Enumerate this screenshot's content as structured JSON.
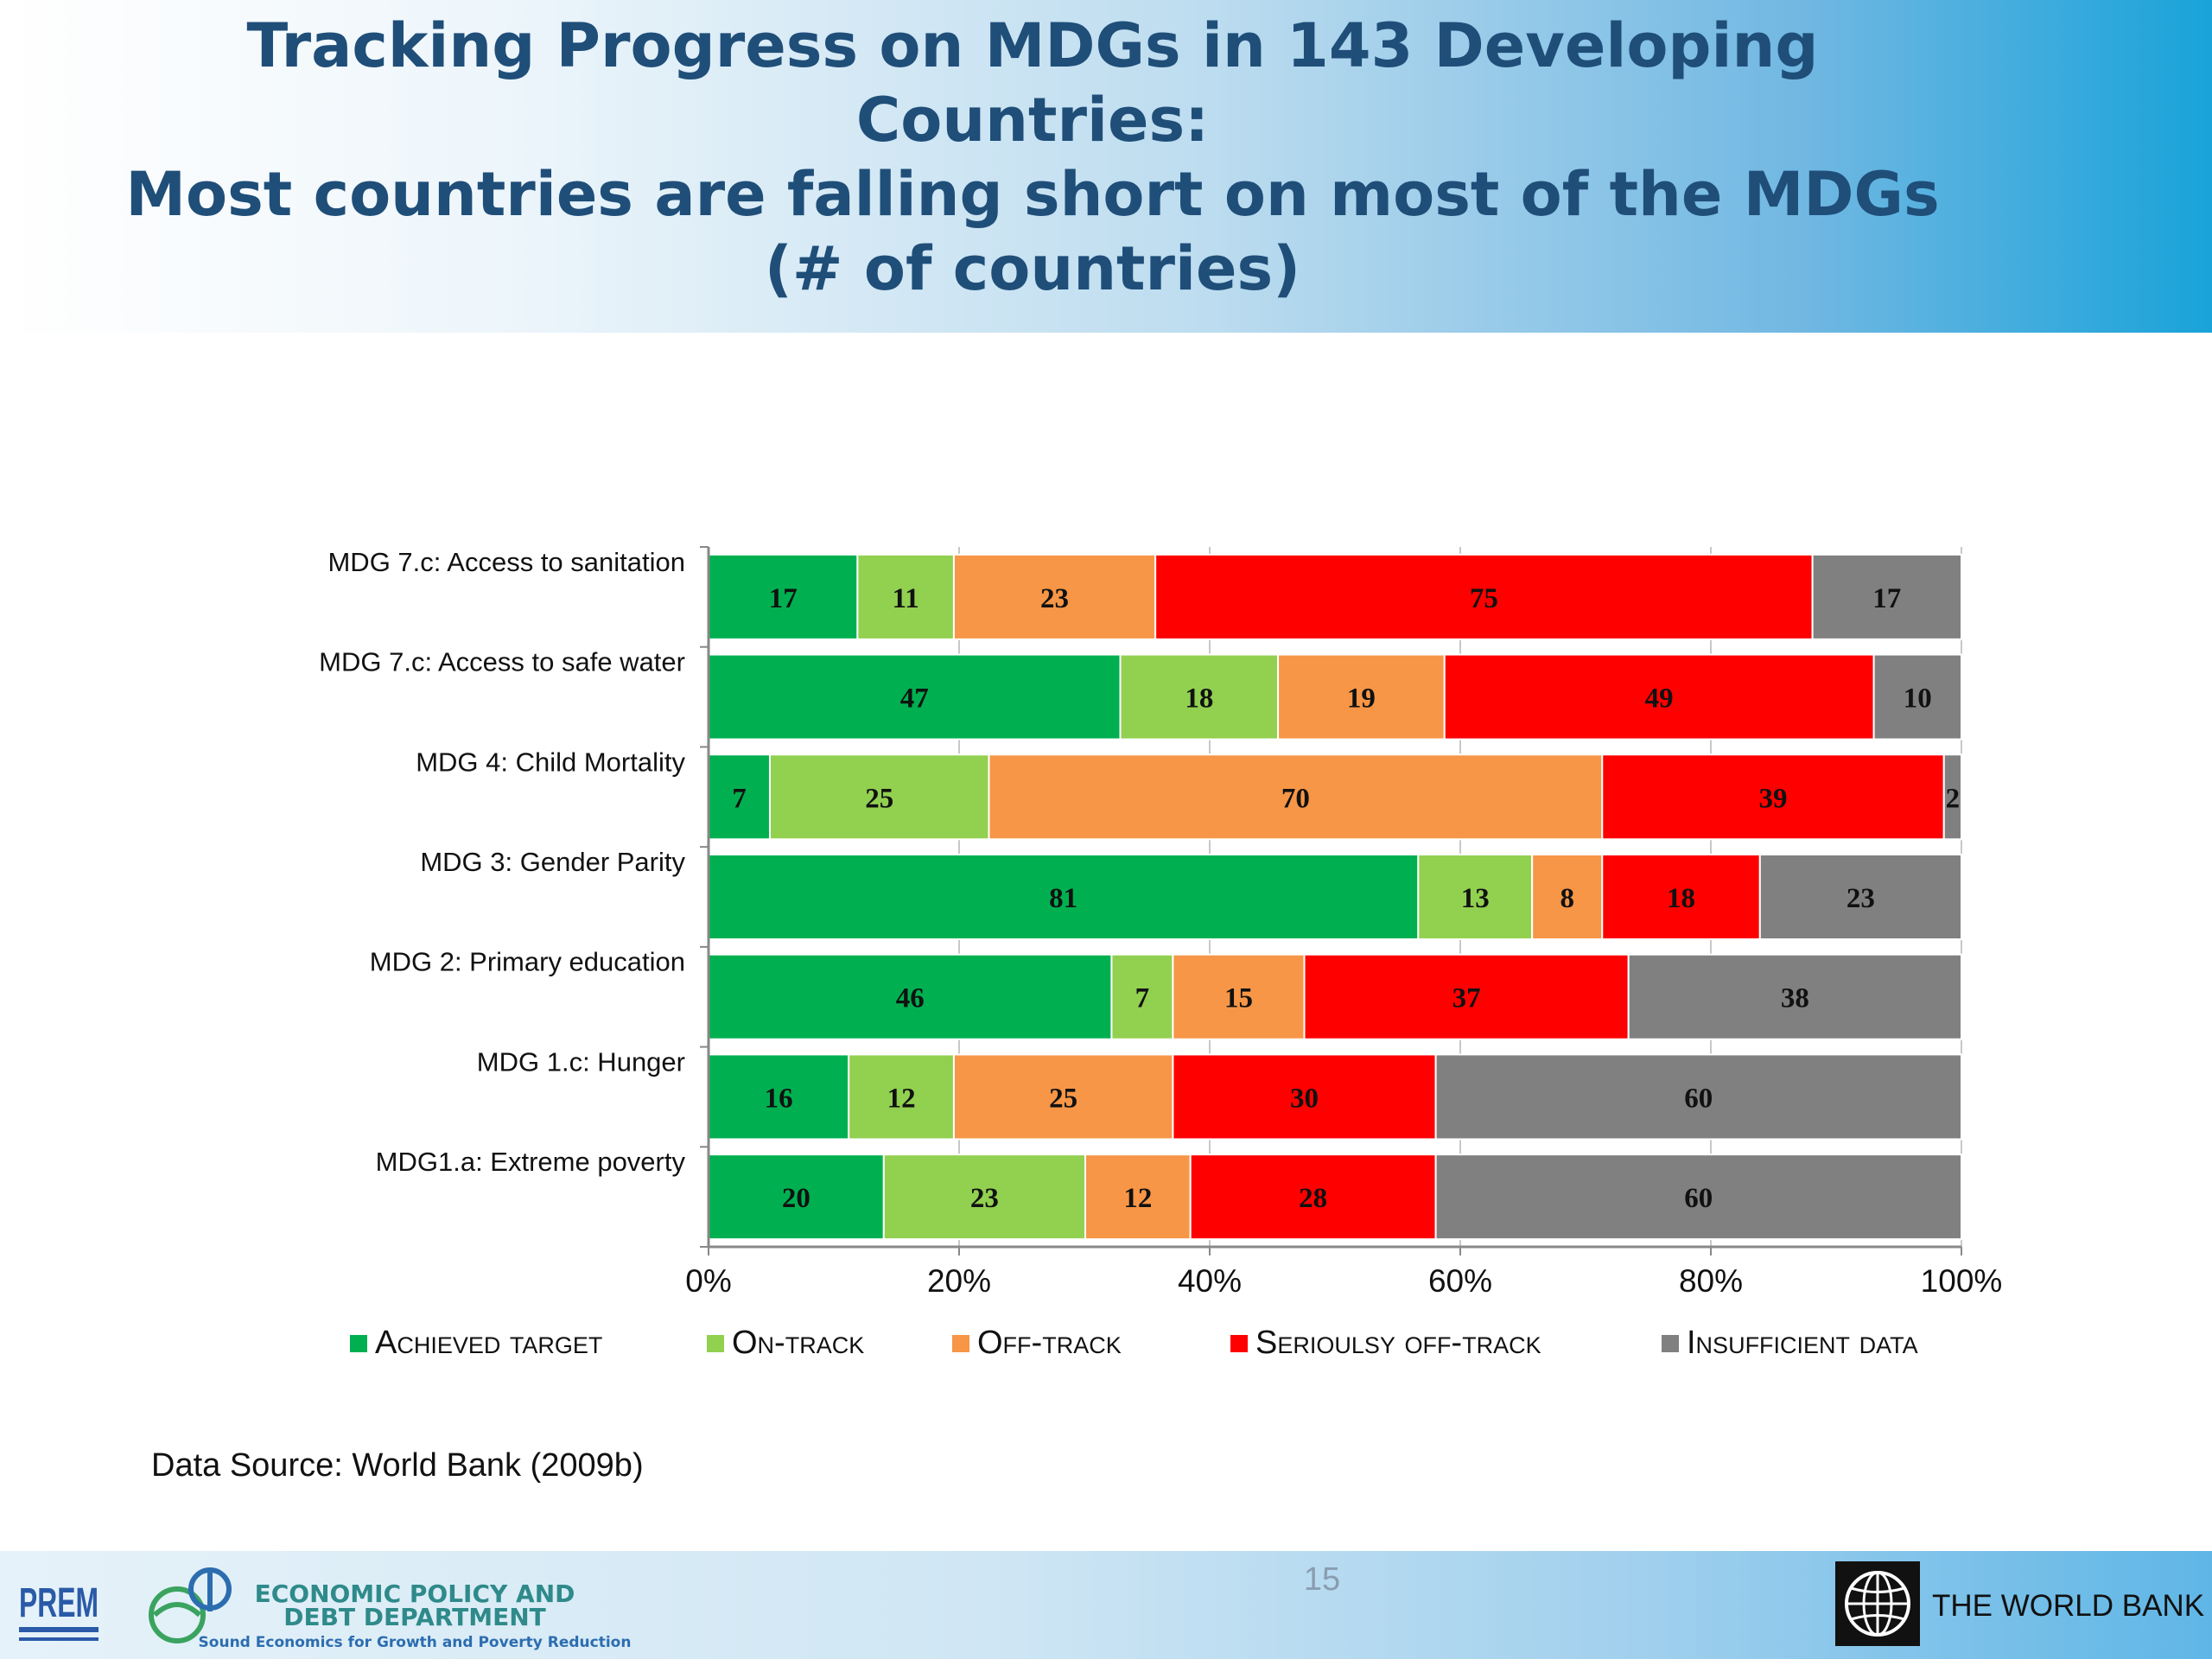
{
  "title": {
    "line1": "Tracking Progress on MDGs in 143 Developing",
    "line2": "Countries:",
    "line3": "Most countries are falling short on most of the MDGs",
    "line4": "(# of countries)"
  },
  "chart_data": {
    "type": "bar",
    "orientation": "horizontal",
    "stacked": "percent",
    "title": "",
    "categories": [
      "MDG 7.c: Access to sanitation",
      "MDG 7.c: Access to safe water",
      "MDG 4: Child Mortality",
      "MDG 3: Gender Parity",
      "MDG 2:  Primary education",
      "MDG 1.c: Hunger",
      "MDG1.a: Extreme poverty"
    ],
    "series": [
      {
        "name": "Achieved target",
        "color": "#00b050",
        "values": [
          17,
          47,
          7,
          81,
          46,
          16,
          20
        ]
      },
      {
        "name": "On-track",
        "color": "#92d050",
        "values": [
          11,
          18,
          25,
          13,
          7,
          12,
          23
        ]
      },
      {
        "name": "Off-track",
        "color": "#f79646",
        "values": [
          23,
          19,
          70,
          8,
          15,
          25,
          12
        ]
      },
      {
        "name": "Serioulsy off-track",
        "color": "#ff0000",
        "values": [
          75,
          49,
          39,
          18,
          37,
          30,
          28
        ]
      },
      {
        "name": "Insufficient data",
        "color": "#808080",
        "values": [
          17,
          10,
          2,
          23,
          38,
          60,
          60
        ]
      }
    ],
    "xticks": [
      "0%",
      "20%",
      "40%",
      "60%",
      "80%",
      "100%"
    ],
    "xlim": [
      0,
      100
    ],
    "grid": true,
    "legend": "bottom"
  },
  "source": "Data Source: World Bank (2009b)",
  "footer": {
    "page_number": "15",
    "prem_logo": "PREM",
    "epdd_line1": "ECONOMIC POLICY AND",
    "epdd_line2": "DEBT DEPARTMENT",
    "epdd_tagline": "Sound Economics for Growth and Poverty Reduction",
    "worldbank": "THE WORLD BANK"
  }
}
